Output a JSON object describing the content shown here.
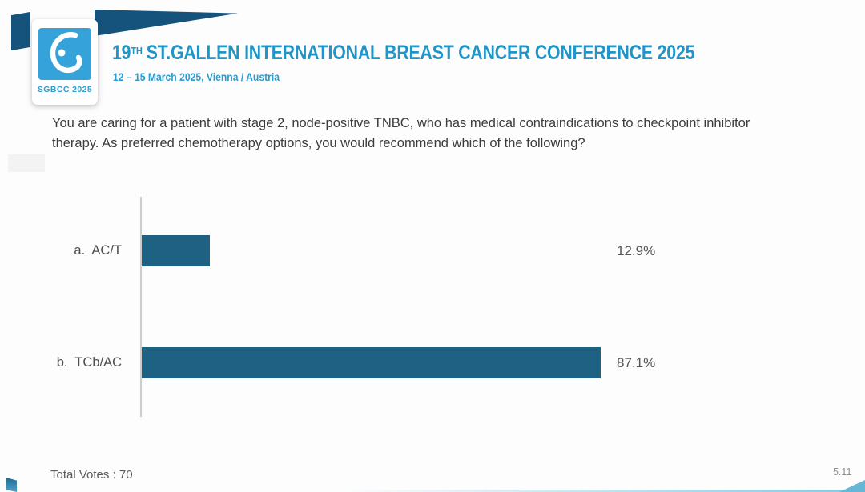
{
  "header": {
    "title_number": "19",
    "title_superscript": "TH",
    "title_rest": "ST.GALLEN INTERNATIONAL BREAST CANCER CONFERENCE 2025",
    "subtitle": "12 – 15 March 2025, Vienna / Austria",
    "logo_caption": "SGBCC 2025",
    "brand_blue": "#2095c8",
    "brand_navy": "#15527c",
    "logo_square_blue": "#35a3d9"
  },
  "question": {
    "text": "You are caring for a patient with stage 2, node-positive TNBC, who has medical contraindications to checkpoint inhibitor therapy.  As preferred chemotherapy options, you would recommend which of the following?"
  },
  "chart_data": {
    "type": "bar",
    "orientation": "horizontal",
    "title": "",
    "categories": [
      "a.  AC/T",
      "b.  TCb/AC"
    ],
    "values": [
      12.9,
      87.1
    ],
    "value_labels": [
      "12.9%",
      "87.1%"
    ],
    "xlim": [
      0,
      100
    ],
    "bar_color": "#1e6182",
    "axis_color": "#cbcbcb",
    "grid": false,
    "legend": "none"
  },
  "footer": {
    "total_votes": "Total Votes : 70",
    "slide_number": "5.11"
  }
}
